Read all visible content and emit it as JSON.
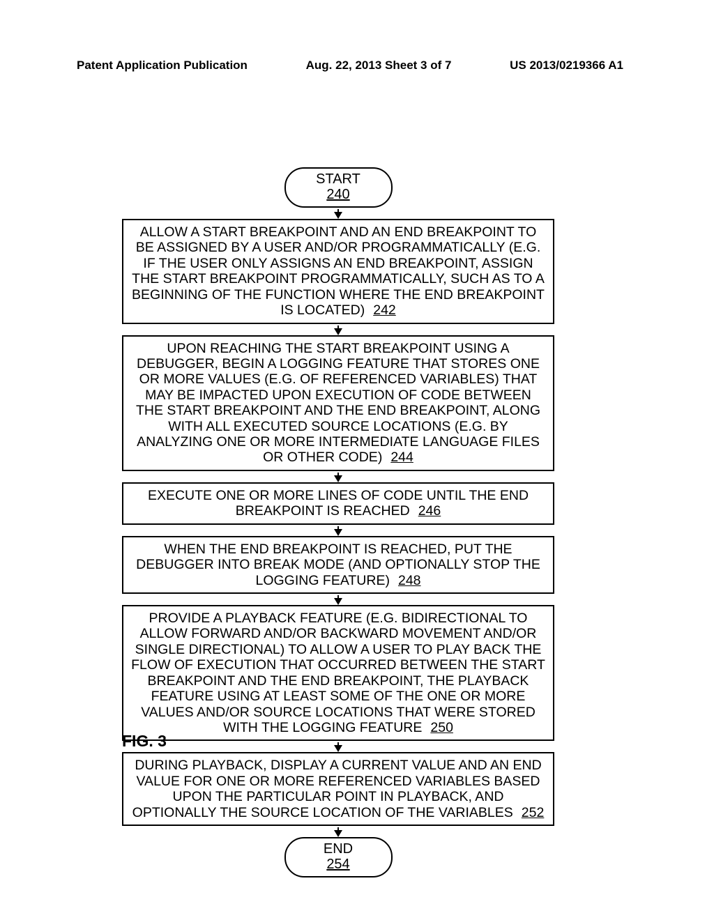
{
  "header": {
    "left": "Patent Application Publication",
    "center": "Aug. 22, 2013  Sheet 3 of 7",
    "right": "US 2013/0219366 A1"
  },
  "flowchart": {
    "type": "flowchart",
    "background_color": "#ffffff",
    "border_color": "#000000",
    "border_width": 2.5,
    "text_color": "#000000",
    "font_size": 19.5,
    "start": {
      "label": "START",
      "ref": "240"
    },
    "steps": [
      {
        "text": "ALLOW A START BREAKPOINT AND AN END BREAKPOINT TO BE ASSIGNED BY A USER AND/OR PROGRAMMATICALLY (E.G. IF THE USER ONLY ASSIGNS AN END BREAKPOINT, ASSIGN THE START BREAKPOINT PROGRAMMATICALLY, SUCH AS TO A BEGINNING OF THE FUNCTION WHERE THE END BREAKPOINT IS LOCATED)",
        "ref": "242"
      },
      {
        "text": "UPON REACHING THE START BREAKPOINT USING A DEBUGGER, BEGIN A LOGGING FEATURE THAT STORES ONE OR MORE VALUES (E.G. OF REFERENCED VARIABLES) THAT MAY BE IMPACTED UPON EXECUTION OF CODE BETWEEN THE START BREAKPOINT AND THE END BREAKPOINT, ALONG WITH ALL EXECUTED SOURCE LOCATIONS (E.G. BY ANALYZING ONE OR MORE INTERMEDIATE LANGUAGE FILES OR OTHER CODE)",
        "ref": "244"
      },
      {
        "text": "EXECUTE ONE OR MORE LINES OF CODE UNTIL THE END BREAKPOINT IS REACHED",
        "ref": "246"
      },
      {
        "text": "WHEN THE END BREAKPOINT IS REACHED, PUT THE DEBUGGER INTO BREAK MODE (AND OPTIONALLY STOP THE LOGGING FEATURE)",
        "ref": "248"
      },
      {
        "text": "PROVIDE A PLAYBACK FEATURE (E.G. BIDIRECTIONAL TO ALLOW FORWARD AND/OR BACKWARD MOVEMENT AND/OR SINGLE DIRECTIONAL) TO ALLOW A USER TO PLAY BACK THE FLOW OF EXECUTION THAT OCCURRED BETWEEN THE START BREAKPOINT AND THE END BREAKPOINT, THE PLAYBACK FEATURE USING AT LEAST SOME OF THE ONE OR MORE VALUES AND/OR SOURCE LOCATIONS THAT WERE STORED WITH THE LOGGING FEATURE",
        "ref": "250"
      },
      {
        "text": "DURING PLAYBACK, DISPLAY A CURRENT VALUE AND AN END VALUE FOR ONE OR MORE REFERENCED VARIABLES BASED UPON THE PARTICULAR POINT IN PLAYBACK, AND OPTIONALLY THE SOURCE LOCATION OF THE VARIABLES",
        "ref": "252"
      }
    ],
    "end": {
      "label": "END",
      "ref": "254"
    }
  },
  "figure_label": "FIG. 3"
}
